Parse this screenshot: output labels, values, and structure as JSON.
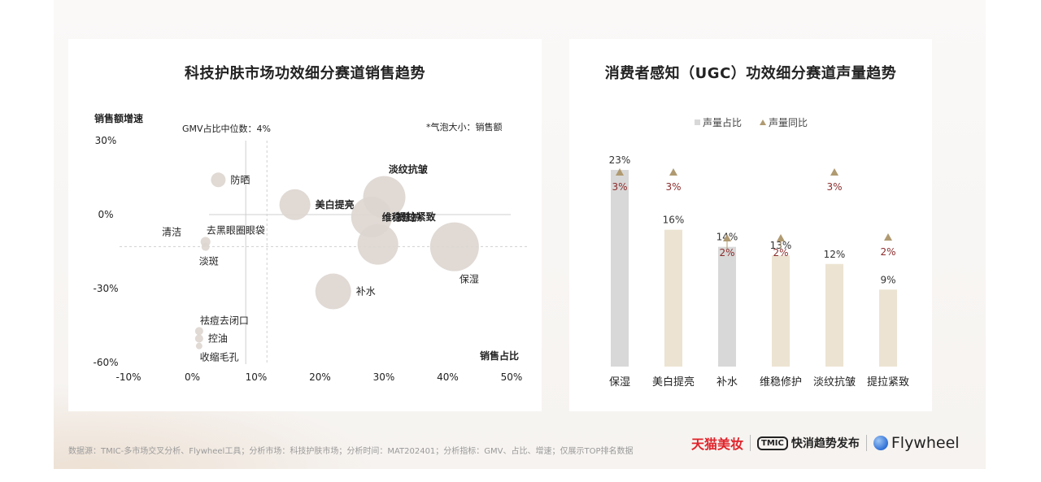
{
  "footer": {
    "source_note": "数据源：TMIC-多市场交叉分析、Flywheel工具；分析市场：科技护肤市场；分析时间：MAT202401；分析指标：GMV、占比、增速；仅展示TOP排名数据"
  },
  "logos": {
    "tmall": "天猫美妆",
    "tmic_box": "TMIC",
    "tmic_text": "快消趋势发布",
    "flywheel": "Flywheel"
  },
  "chart_data": [
    {
      "type": "scatter",
      "title": "科技护肤市场功效细分赛道销售趋势",
      "ylabel": "销售额增速",
      "xlabel": "销售占比",
      "median_note": "GMV占比中位数：4%",
      "size_note": "*气泡大小：销售额",
      "xlim": [
        -10,
        50
      ],
      "ylim": [
        -60,
        30
      ],
      "x_ticks": [
        "-10%",
        "0%",
        "10%",
        "20%",
        "30%",
        "40%",
        "50%"
      ],
      "y_ticks": [
        "30%",
        "0%",
        "-30%",
        "-60%"
      ],
      "x_tick_values": [
        -10,
        0,
        10,
        20,
        30,
        40,
        50
      ],
      "y_tick_values": [
        30,
        0,
        -30,
        -60
      ],
      "median_x": 4,
      "median_y": -13,
      "points": [
        {
          "label": "防晒",
          "x": 4,
          "y": 14,
          "r": 9,
          "bold": false,
          "label_pos": "right"
        },
        {
          "label": "美白提亮",
          "x": 16,
          "y": 4,
          "r": 19,
          "bold": true,
          "label_pos": "right"
        },
        {
          "label": "淡纹抗皱",
          "x": 30,
          "y": 7,
          "r": 26,
          "bold": true,
          "label_pos": "top-right"
        },
        {
          "label": "提拉紧致",
          "x": 28,
          "y": -1,
          "r": 25,
          "bold": true,
          "label_pos": "right"
        },
        {
          "label": "维稳修护",
          "x": 29,
          "y": -12,
          "r": 25,
          "bold": true,
          "label_pos": "top-right"
        },
        {
          "label": "保湿",
          "x": 41,
          "y": -13,
          "r": 30,
          "bold": false,
          "label_pos": "bottom-right"
        },
        {
          "label": "补水",
          "x": 22,
          "y": -31,
          "r": 22,
          "bold": false,
          "label_pos": "right"
        },
        {
          "label": "清洁",
          "x": -1,
          "y": -7,
          "r": 0,
          "bold": false,
          "label_pos": "left"
        },
        {
          "label": "去黑眼圈眼袋",
          "x": 2,
          "y": -11,
          "r": 6,
          "bold": false,
          "label_pos": "top-right"
        },
        {
          "label": "淡斑",
          "x": 2,
          "y": -13,
          "r": 5,
          "bold": false,
          "label_pos": "bottom"
        },
        {
          "label": "祛痘去闭口",
          "x": 1,
          "y": -47,
          "r": 5,
          "bold": false,
          "label_pos": "top-right"
        },
        {
          "label": "控油",
          "x": 1,
          "y": -50,
          "r": 5,
          "bold": false,
          "label_pos": "right"
        },
        {
          "label": "收缩毛孔",
          "x": 1,
          "y": -53,
          "r": 4,
          "bold": false,
          "label_pos": "bottom-right"
        }
      ]
    },
    {
      "type": "bar",
      "title": "消费者感知（UGC）功效细分赛道声量趋势",
      "legend": [
        "声量占比",
        "声量同比"
      ],
      "legend_position": "top-left",
      "categories": [
        "保湿",
        "美白提亮",
        "补水",
        "维稳修护",
        "淡纹抗皱",
        "提拉紧致"
      ],
      "series": [
        {
          "name": "声量占比",
          "values": [
            23,
            16,
            14,
            13,
            12,
            9
          ],
          "labels": [
            "23%",
            "16%",
            "14%",
            "13%",
            "12%",
            "9%"
          ]
        },
        {
          "name": "声量同比",
          "values": [
            3,
            3,
            2,
            2,
            3,
            2
          ],
          "labels": [
            "3%",
            "3%",
            "2%",
            "2%",
            "3%",
            "2%"
          ]
        }
      ],
      "ylim": [
        0,
        25
      ],
      "colors": {
        "bar_highlight": "#d8d8d8",
        "bar": "#ece3d2",
        "marker": "#b09a71",
        "yoy_text": "#8c2c2c"
      }
    }
  ]
}
